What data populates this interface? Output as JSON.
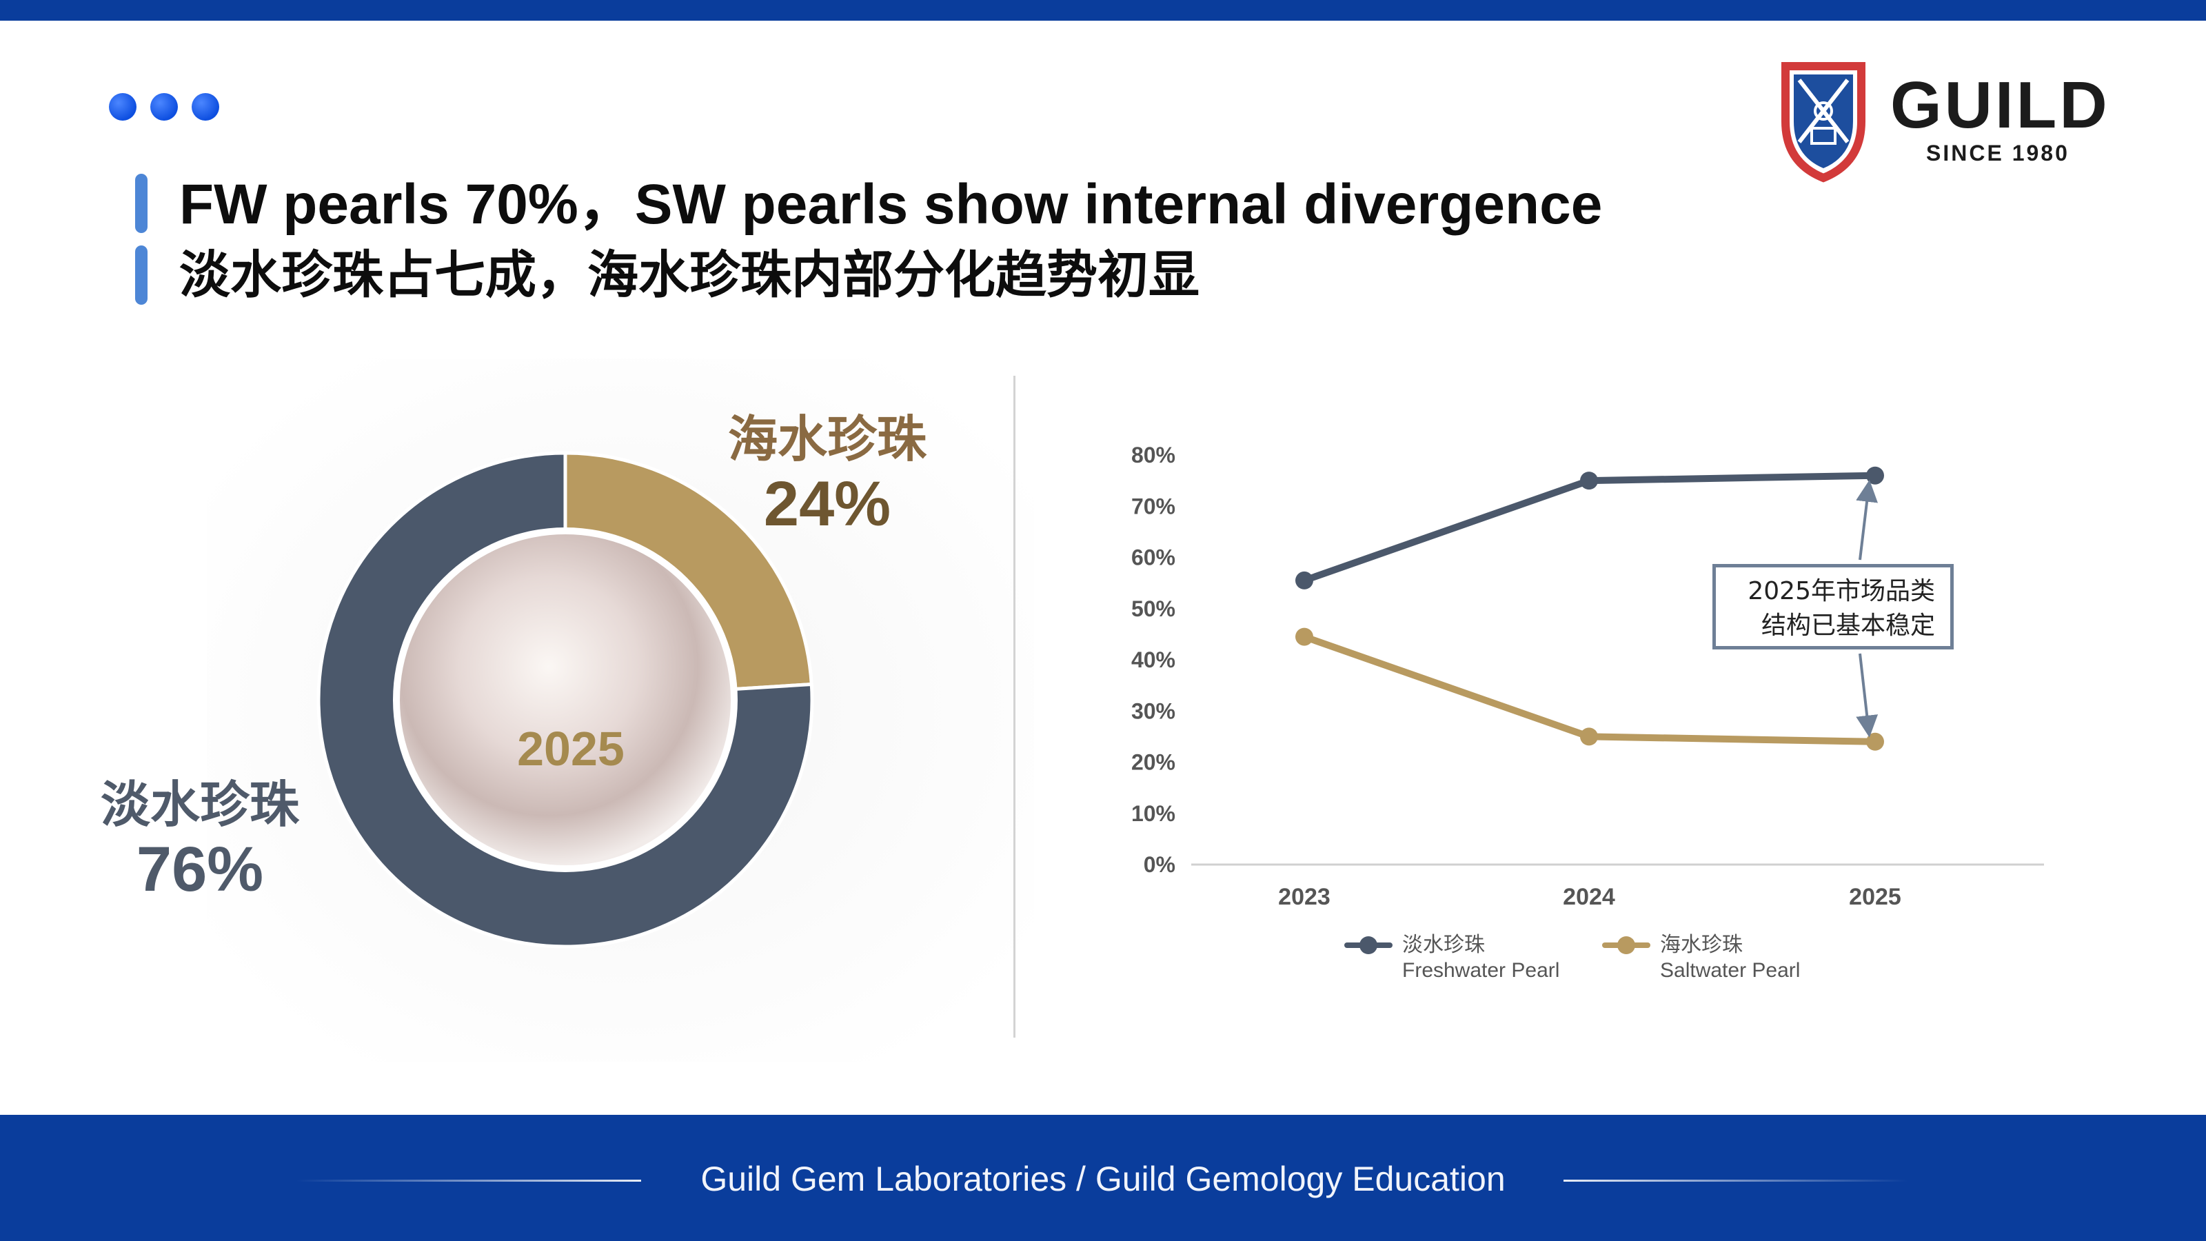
{
  "header": {
    "title_en": "FW pearls 70%，SW pearls show internal divergence",
    "title_cn": "淡水珍珠占七成，海水珍珠内部分化趋势初显",
    "dot_color": "#1f5fe8",
    "bar_color": "#4d86d6"
  },
  "logo": {
    "word": "GUILD",
    "since": "SINCE 1980"
  },
  "donut": {
    "year": "2025",
    "saltwater": {
      "name": "海水珍珠",
      "pct_label": "24%",
      "value": 24,
      "color": "#b89a60"
    },
    "freshwater": {
      "name": "淡水珍珠",
      "pct_label": "76%",
      "value": 76,
      "color": "#4b586b"
    }
  },
  "chart_data": {
    "type": "line",
    "x": [
      "2023",
      "2024",
      "2025"
    ],
    "ylim": [
      0,
      80
    ],
    "yticks": [
      "0%",
      "10%",
      "20%",
      "30%",
      "40%",
      "50%",
      "60%",
      "70%",
      "80%"
    ],
    "series": [
      {
        "name": "淡水珍珠 Freshwater Pearl",
        "name_cn": "淡水珍珠",
        "name_en": "Freshwater Pearl",
        "values": [
          55.5,
          75,
          76
        ],
        "color": "#4b586b"
      },
      {
        "name": "海水珍珠 Saltwater Pearl",
        "name_cn": "海水珍珠",
        "name_en": "Saltwater Pearl",
        "values": [
          44.5,
          25,
          24
        ],
        "color": "#b89a60"
      }
    ],
    "annotation": {
      "line1": "2025年市场品类",
      "line2": "结构已基本稳定"
    },
    "grid": false,
    "legend_position": "bottom"
  },
  "footer": {
    "text": "Guild Gem Laboratories / Guild Gemology Education",
    "color": "#0a3d9c"
  }
}
